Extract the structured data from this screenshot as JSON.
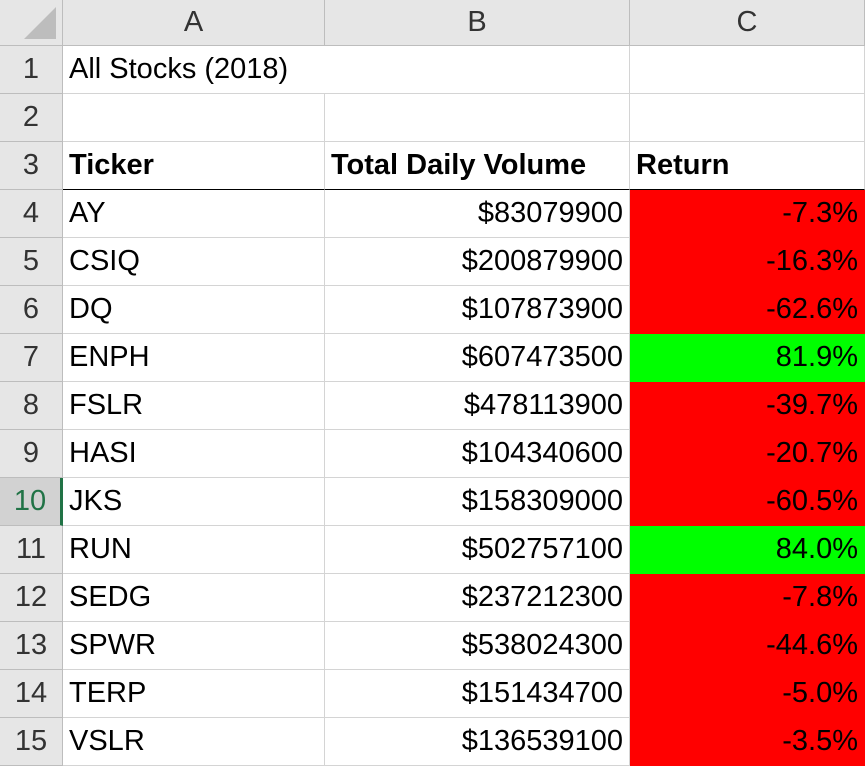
{
  "columns": [
    "A",
    "B",
    "C"
  ],
  "rows": [
    "1",
    "2",
    "3",
    "4",
    "5",
    "6",
    "7",
    "8",
    "9",
    "10",
    "11",
    "12",
    "13",
    "14",
    "15"
  ],
  "selected_row": "10",
  "title": "All Stocks (2018)",
  "headers": {
    "ticker": "Ticker",
    "volume": "Total Daily Volume",
    "return": "Return"
  },
  "colors": {
    "negative": "#ff0000",
    "positive": "#00ff00"
  },
  "stocks": [
    {
      "ticker": "AY",
      "volume": "$83079900",
      "return": "-7.3%",
      "status": "negative"
    },
    {
      "ticker": "CSIQ",
      "volume": "$200879900",
      "return": "-16.3%",
      "status": "negative"
    },
    {
      "ticker": "DQ",
      "volume": "$107873900",
      "return": "-62.6%",
      "status": "negative"
    },
    {
      "ticker": "ENPH",
      "volume": "$607473500",
      "return": "81.9%",
      "status": "positive"
    },
    {
      "ticker": "FSLR",
      "volume": "$478113900",
      "return": "-39.7%",
      "status": "negative"
    },
    {
      "ticker": "HASI",
      "volume": "$104340600",
      "return": "-20.7%",
      "status": "negative"
    },
    {
      "ticker": "JKS",
      "volume": "$158309000",
      "return": "-60.5%",
      "status": "negative"
    },
    {
      "ticker": "RUN",
      "volume": "$502757100",
      "return": "84.0%",
      "status": "positive"
    },
    {
      "ticker": "SEDG",
      "volume": "$237212300",
      "return": "-7.8%",
      "status": "negative"
    },
    {
      "ticker": "SPWR",
      "volume": "$538024300",
      "return": "-44.6%",
      "status": "negative"
    },
    {
      "ticker": "TERP",
      "volume": "$151434700",
      "return": "-5.0%",
      "status": "negative"
    },
    {
      "ticker": "VSLR",
      "volume": "$136539100",
      "return": "-3.5%",
      "status": "negative"
    }
  ]
}
